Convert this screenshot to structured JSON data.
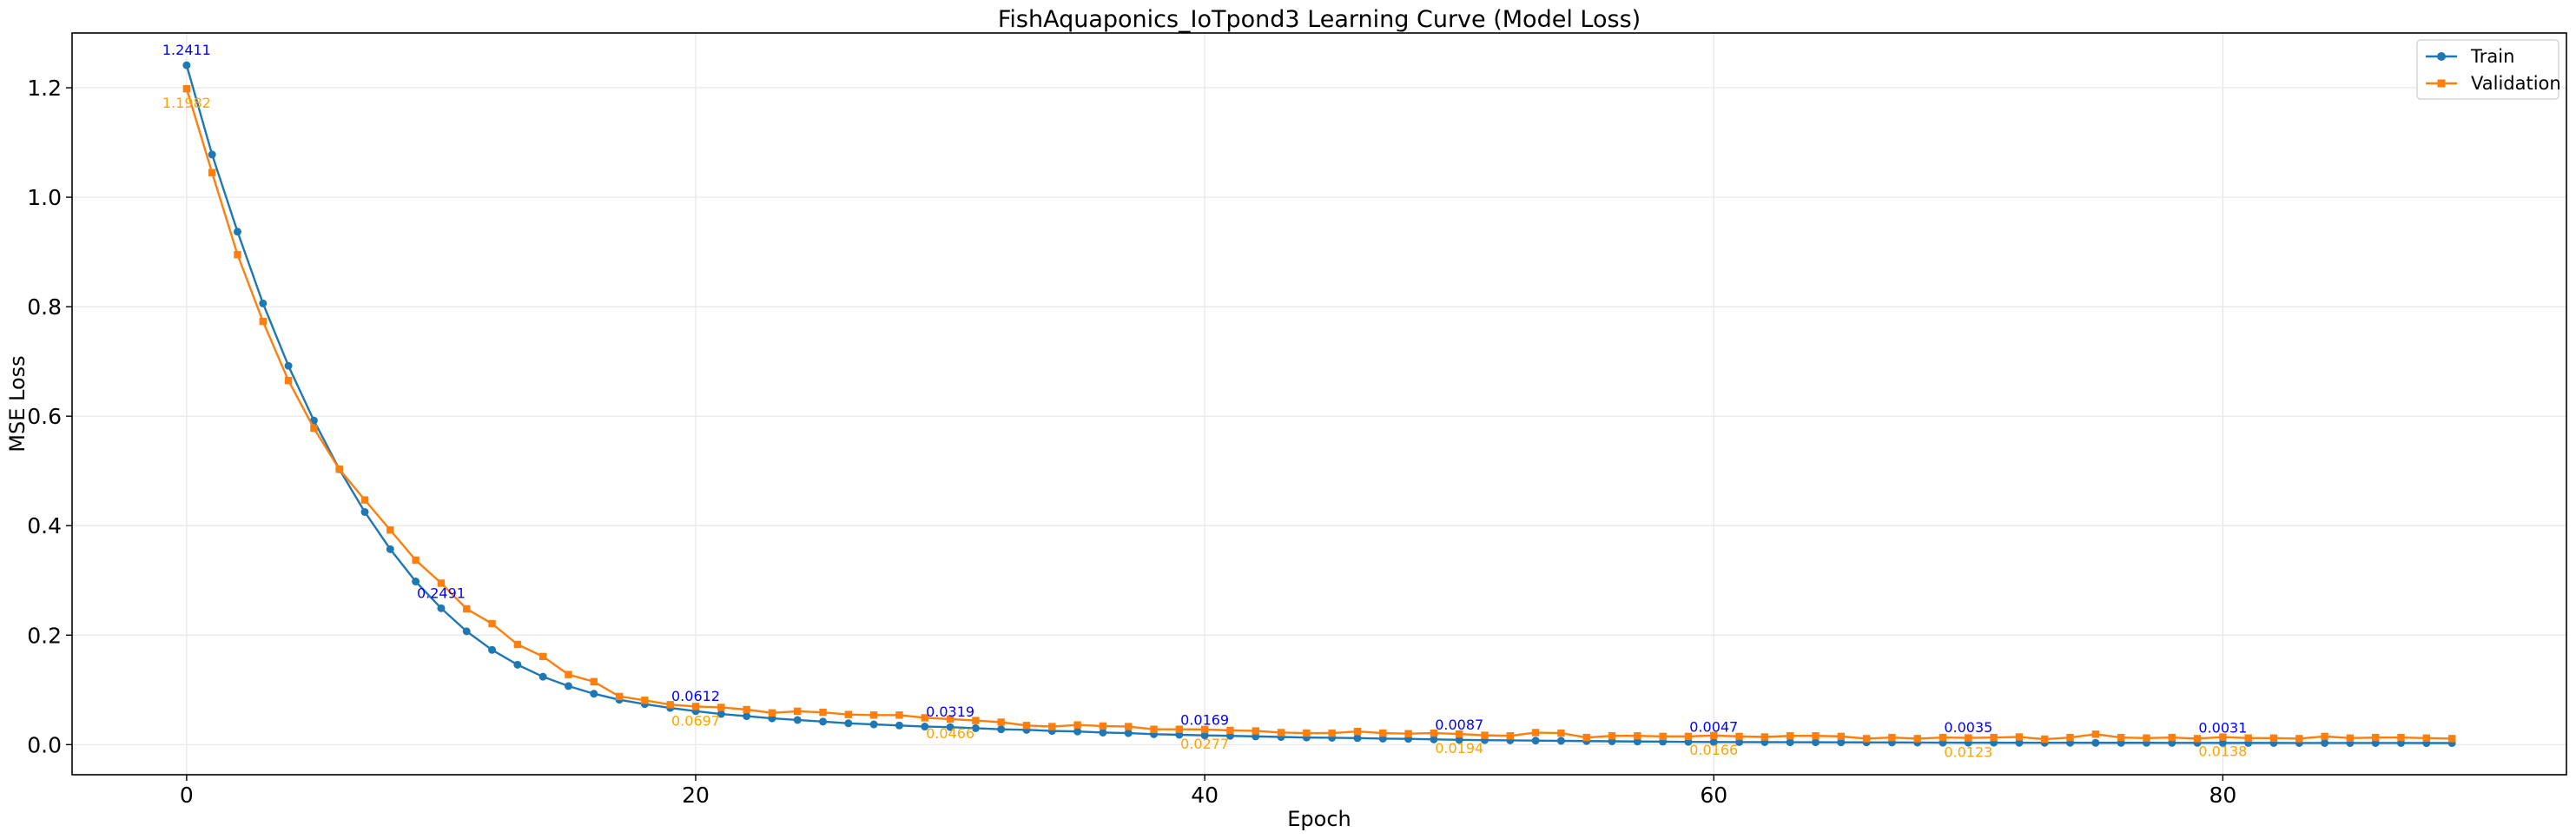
{
  "chart_data": {
    "type": "line",
    "title": "FishAquaponics_IoTpond3 Learning Curve (Model Loss)",
    "xlabel": "Epoch",
    "ylabel": "MSE Loss",
    "xlim": [
      -4.5,
      93.5
    ],
    "ylim": [
      -0.055,
      1.3
    ],
    "xticks": [
      0,
      20,
      40,
      60,
      80
    ],
    "yticks": [
      0.0,
      0.2,
      0.4,
      0.6,
      0.8,
      1.0,
      1.2
    ],
    "xtick_labels": [
      "0",
      "20",
      "40",
      "60",
      "80"
    ],
    "ytick_labels": [
      "0.0",
      "0.2",
      "0.4",
      "0.6",
      "0.8",
      "1.0",
      "1.2"
    ],
    "grid": true,
    "legend_position": "top-right",
    "series": [
      {
        "name": "Train",
        "color": "#1f77b4",
        "marker": "circle",
        "x": [
          0,
          1,
          2,
          3,
          4,
          5,
          6,
          7,
          8,
          9,
          10,
          11,
          12,
          13,
          14,
          15,
          16,
          17,
          18,
          19,
          20,
          21,
          22,
          23,
          24,
          25,
          26,
          27,
          28,
          29,
          30,
          31,
          32,
          33,
          34,
          35,
          36,
          37,
          38,
          39,
          40,
          41,
          42,
          43,
          44,
          45,
          46,
          47,
          48,
          49,
          50,
          51,
          52,
          53,
          54,
          55,
          56,
          57,
          58,
          59,
          60,
          61,
          62,
          63,
          64,
          65,
          66,
          67,
          68,
          69,
          70,
          71,
          72,
          73,
          74,
          75,
          76,
          77,
          78,
          79,
          80,
          81,
          82,
          83,
          84,
          85,
          86,
          87,
          88,
          89
        ],
        "values": [
          1.2411,
          1.078,
          0.937,
          0.806,
          0.692,
          0.592,
          0.503,
          0.425,
          0.357,
          0.298,
          0.2491,
          0.207,
          0.173,
          0.146,
          0.124,
          0.107,
          0.093,
          0.082,
          0.074,
          0.067,
          0.0612,
          0.056,
          0.052,
          0.048,
          0.045,
          0.042,
          0.039,
          0.037,
          0.035,
          0.033,
          0.0319,
          0.03,
          0.028,
          0.027,
          0.025,
          0.024,
          0.022,
          0.021,
          0.019,
          0.018,
          0.0169,
          0.016,
          0.015,
          0.014,
          0.013,
          0.0125,
          0.012,
          0.011,
          0.0105,
          0.0095,
          0.0087,
          0.0082,
          0.0078,
          0.0073,
          0.0069,
          0.0065,
          0.0061,
          0.0057,
          0.0054,
          0.005,
          0.0047,
          0.0046,
          0.0045,
          0.0044,
          0.0043,
          0.0042,
          0.0041,
          0.004,
          0.0038,
          0.0036,
          0.0035,
          0.0035,
          0.0034,
          0.0034,
          0.0034,
          0.0033,
          0.0033,
          0.0033,
          0.0032,
          0.0032,
          0.0031,
          0.0031,
          0.0031,
          0.003,
          0.003,
          0.003,
          0.003,
          0.003,
          0.0029,
          0.0029
        ]
      },
      {
        "name": "Validation",
        "color": "#ff7f0e",
        "marker": "square",
        "x": [
          0,
          1,
          2,
          3,
          4,
          5,
          6,
          7,
          8,
          9,
          10,
          11,
          12,
          13,
          14,
          15,
          16,
          17,
          18,
          19,
          20,
          21,
          22,
          23,
          24,
          25,
          26,
          27,
          28,
          29,
          30,
          31,
          32,
          33,
          34,
          35,
          36,
          37,
          38,
          39,
          40,
          41,
          42,
          43,
          44,
          45,
          46,
          47,
          48,
          49,
          50,
          51,
          52,
          53,
          54,
          55,
          56,
          57,
          58,
          59,
          60,
          61,
          62,
          63,
          64,
          65,
          66,
          67,
          68,
          69,
          70,
          71,
          72,
          73,
          74,
          75,
          76,
          77,
          78,
          79,
          80,
          81,
          82,
          83,
          84,
          85,
          86,
          87,
          88,
          89
        ],
        "values": [
          1.1982,
          1.045,
          0.895,
          0.773,
          0.665,
          0.578,
          0.503,
          0.447,
          0.392,
          0.337,
          0.295,
          0.248,
          0.221,
          0.183,
          0.161,
          0.128,
          0.115,
          0.088,
          0.081,
          0.073,
          0.0697,
          0.068,
          0.064,
          0.058,
          0.061,
          0.059,
          0.055,
          0.054,
          0.054,
          0.049,
          0.0466,
          0.044,
          0.041,
          0.035,
          0.033,
          0.036,
          0.034,
          0.033,
          0.028,
          0.028,
          0.0277,
          0.026,
          0.025,
          0.022,
          0.021,
          0.021,
          0.024,
          0.021,
          0.02,
          0.021,
          0.0194,
          0.017,
          0.016,
          0.022,
          0.021,
          0.013,
          0.016,
          0.016,
          0.015,
          0.015,
          0.0166,
          0.015,
          0.014,
          0.016,
          0.016,
          0.015,
          0.011,
          0.013,
          0.011,
          0.013,
          0.0123,
          0.013,
          0.014,
          0.01,
          0.013,
          0.019,
          0.013,
          0.012,
          0.013,
          0.011,
          0.0138,
          0.012,
          0.012,
          0.011,
          0.015,
          0.012,
          0.013,
          0.013,
          0.012,
          0.011
        ]
      }
    ],
    "annotations": {
      "train": [
        {
          "x": 0,
          "y": 1.2411,
          "text": "1.2411"
        },
        {
          "x": 10,
          "y": 0.2491,
          "text": "0.2491"
        },
        {
          "x": 20,
          "y": 0.0612,
          "text": "0.0612"
        },
        {
          "x": 30,
          "y": 0.0319,
          "text": "0.0319"
        },
        {
          "x": 40,
          "y": 0.0169,
          "text": "0.0169"
        },
        {
          "x": 50,
          "y": 0.0087,
          "text": "0.0087"
        },
        {
          "x": 60,
          "y": 0.0047,
          "text": "0.0047"
        },
        {
          "x": 70,
          "y": 0.0035,
          "text": "0.0035"
        },
        {
          "x": 80,
          "y": 0.0031,
          "text": "0.0031"
        }
      ],
      "validation": [
        {
          "x": 0,
          "y": 1.1982,
          "text": "1.1982"
        },
        {
          "x": 20,
          "y": 0.0697,
          "text": "0.0697"
        },
        {
          "x": 30,
          "y": 0.0466,
          "text": "0.0466"
        },
        {
          "x": 40,
          "y": 0.0277,
          "text": "0.0277"
        },
        {
          "x": 50,
          "y": 0.0194,
          "text": "0.0194"
        },
        {
          "x": 60,
          "y": 0.0166,
          "text": "0.0166"
        },
        {
          "x": 70,
          "y": 0.0123,
          "text": "0.0123"
        },
        {
          "x": 80,
          "y": 0.0138,
          "text": "0.0138"
        }
      ]
    },
    "annotation_colors": {
      "train": "#0000ff",
      "validation": "#ffa500"
    }
  }
}
